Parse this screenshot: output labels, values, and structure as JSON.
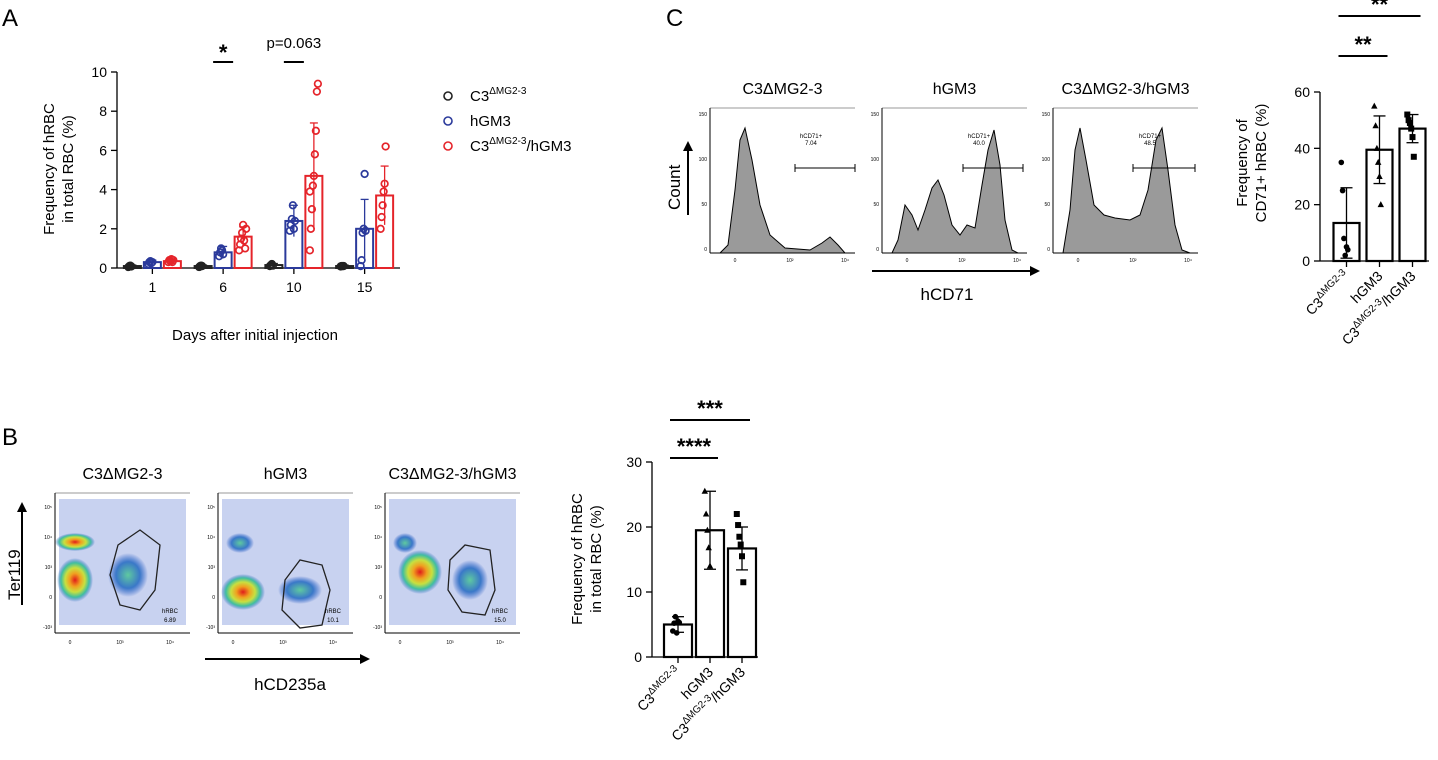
{
  "panels": {
    "a": {
      "letter": "A"
    },
    "b": {
      "letter": "B"
    },
    "c": {
      "letter": "C"
    }
  },
  "colors": {
    "c3": "#222222",
    "hgm3": "#2b3a9b",
    "combo": "#e5242a",
    "hist_fill": "#9a9a9a"
  },
  "group_labels": {
    "c3": {
      "base": "C3",
      "sup": "ΔMG2-3"
    },
    "hgm3": "hGM3",
    "combo": {
      "base": "C3",
      "sup": "ΔMG2-3",
      "suffix": "/hGM3"
    }
  },
  "chart_data": [
    {
      "id": "A",
      "type": "bar",
      "title": "",
      "xlabel": "Days after initial injection",
      "ylabel": "Frequency of hRBC in total RBC (%)",
      "ylabel_lines": [
        "Frequency of hRBC",
        "in total RBC (%)"
      ],
      "categories": [
        "1",
        "6",
        "10",
        "15"
      ],
      "ylim": [
        0,
        10
      ],
      "yticks": [
        0,
        2,
        4,
        6,
        8,
        10
      ],
      "legend_position": "right",
      "legend": [
        "C3ΔMG2-3",
        "hGM3",
        "C3ΔMG2-3/hGM3"
      ],
      "series": [
        {
          "name": "C3ΔMG2-3",
          "key": "c3",
          "values": [
            0.1,
            0.1,
            0.15,
            0.1
          ],
          "sd": [
            0.05,
            0.05,
            0.08,
            0.05
          ],
          "points": [
            [
              0.05,
              0.1,
              0.12,
              0.08
            ],
            [
              0.05,
              0.1,
              0.12,
              0.1
            ],
            [
              0.1,
              0.15,
              0.2,
              0.12
            ],
            [
              0.08,
              0.1,
              0.1,
              0.1
            ]
          ]
        },
        {
          "name": "hGM3",
          "key": "hgm3",
          "values": [
            0.3,
            0.8,
            2.4,
            2.0
          ],
          "sd": [
            0.1,
            0.3,
            0.8,
            1.5
          ],
          "points": [
            [
              0.2,
              0.3,
              0.35,
              0.25,
              0.3
            ],
            [
              0.6,
              0.8,
              1.0,
              0.9,
              0.7
            ],
            [
              1.9,
              2.2,
              2.5,
              3.2,
              2.0,
              2.4
            ],
            [
              0.1,
              0.4,
              1.8,
              2.0,
              4.8,
              1.9
            ]
          ]
        },
        {
          "name": "C3ΔMG2-3/hGM3",
          "key": "combo",
          "values": [
            0.35,
            1.6,
            4.7,
            3.7
          ],
          "sd": [
            0.1,
            0.5,
            2.7,
            1.5
          ],
          "points": [
            [
              0.3,
              0.4,
              0.35,
              0.45,
              0.3,
              0.4
            ],
            [
              0.9,
              1.2,
              1.5,
              1.8,
              2.2,
              1.4,
              1.0,
              2.0
            ],
            [
              0.9,
              2.0,
              3.0,
              4.2,
              4.7,
              5.8,
              7.0,
              9.0,
              9.4,
              3.9
            ],
            [
              2.0,
              2.6,
              3.2,
              3.9,
              4.3,
              6.2
            ]
          ]
        }
      ],
      "significance": [
        {
          "label": "*",
          "category": "6"
        },
        {
          "label": "p=0.063",
          "category": "10"
        }
      ]
    },
    {
      "id": "B",
      "type": "bar",
      "title": "",
      "ylabel": "Frequency of hRBC in total RBC (%)",
      "ylabel_lines": [
        "Frequency of hRBC",
        "in total RBC (%)"
      ],
      "categories": [
        "C3ΔMG2-3",
        "hGM3",
        "C3ΔMG2-3/hGM3"
      ],
      "values": [
        5.0,
        19.5,
        16.7
      ],
      "sd": [
        1.2,
        6.0,
        3.3
      ],
      "points": [
        [
          4.0,
          5.2,
          6.2,
          3.7,
          5.5,
          5.3
        ],
        [
          25.5,
          22.0,
          19.5,
          16.8,
          14.0
        ],
        [
          22.0,
          20.3,
          18.5,
          17.3,
          15.5,
          11.5
        ]
      ],
      "ylim": [
        0,
        30
      ],
      "yticks": [
        0,
        10,
        20,
        30
      ],
      "significance": [
        {
          "label": "****",
          "from": 0,
          "to": 1
        },
        {
          "label": "***",
          "from": 0,
          "to": 2
        }
      ]
    },
    {
      "id": "C",
      "type": "bar",
      "title": "",
      "ylabel": "Frequency of CD71+ hRBC (%)",
      "ylabel_lines": [
        "Frequency of",
        "CD71+ hRBC (%)"
      ],
      "categories": [
        "C3ΔMG2-3",
        "hGM3",
        "C3ΔMG2-3/hGM3"
      ],
      "values": [
        13.5,
        39.5,
        47.0
      ],
      "sd": [
        12.5,
        12.0,
        5.0
      ],
      "points": [
        [
          35.0,
          25.0,
          8.0,
          2.0,
          5.0,
          4.0
        ],
        [
          55.0,
          48.0,
          40.0,
          35.0,
          30.0,
          20.0
        ],
        [
          52.0,
          50.0,
          49.0,
          47.0,
          44.0,
          37.0
        ]
      ],
      "ylim": [
        0,
        60
      ],
      "yticks": [
        0,
        20,
        40,
        60
      ],
      "significance": [
        {
          "label": "**",
          "from": 0,
          "to": 1
        },
        {
          "label": "**",
          "from": 0,
          "to": 2
        }
      ]
    }
  ],
  "flow_b": {
    "y_axis_label": "Ter119",
    "x_axis_label": "hCD235a",
    "y_ticks": [
      "10⁵",
      "10⁴",
      "10³",
      "0",
      "-10³"
    ],
    "x_ticks": [
      "0",
      "10³",
      "10⁴"
    ],
    "plots": [
      {
        "title": "C3ΔMG2-3",
        "gate_label": "hRBC",
        "gate_value": "6.89"
      },
      {
        "title": "hGM3",
        "gate_label": "hRBC",
        "gate_value": "10.1"
      },
      {
        "title": "C3ΔMG2-3/hGM3",
        "gate_label": "hRBC",
        "gate_value": "15.0"
      }
    ]
  },
  "flow_c": {
    "y_axis_label": "Count",
    "x_axis_label": "hCD71",
    "y_ticks": [
      "150",
      "100",
      "50",
      "0"
    ],
    "x_ticks": [
      "0",
      "10²",
      "10⁴"
    ],
    "plots": [
      {
        "title": "C3ΔMG2-3",
        "gate_label": "hCD71+",
        "gate_value": "7.04"
      },
      {
        "title": "hGM3",
        "gate_label": "hCD71+",
        "gate_value": "40.0"
      },
      {
        "title": "C3ΔMG2-3/hGM3",
        "gate_label": "hCD71+",
        "gate_value": "48.5"
      }
    ]
  }
}
